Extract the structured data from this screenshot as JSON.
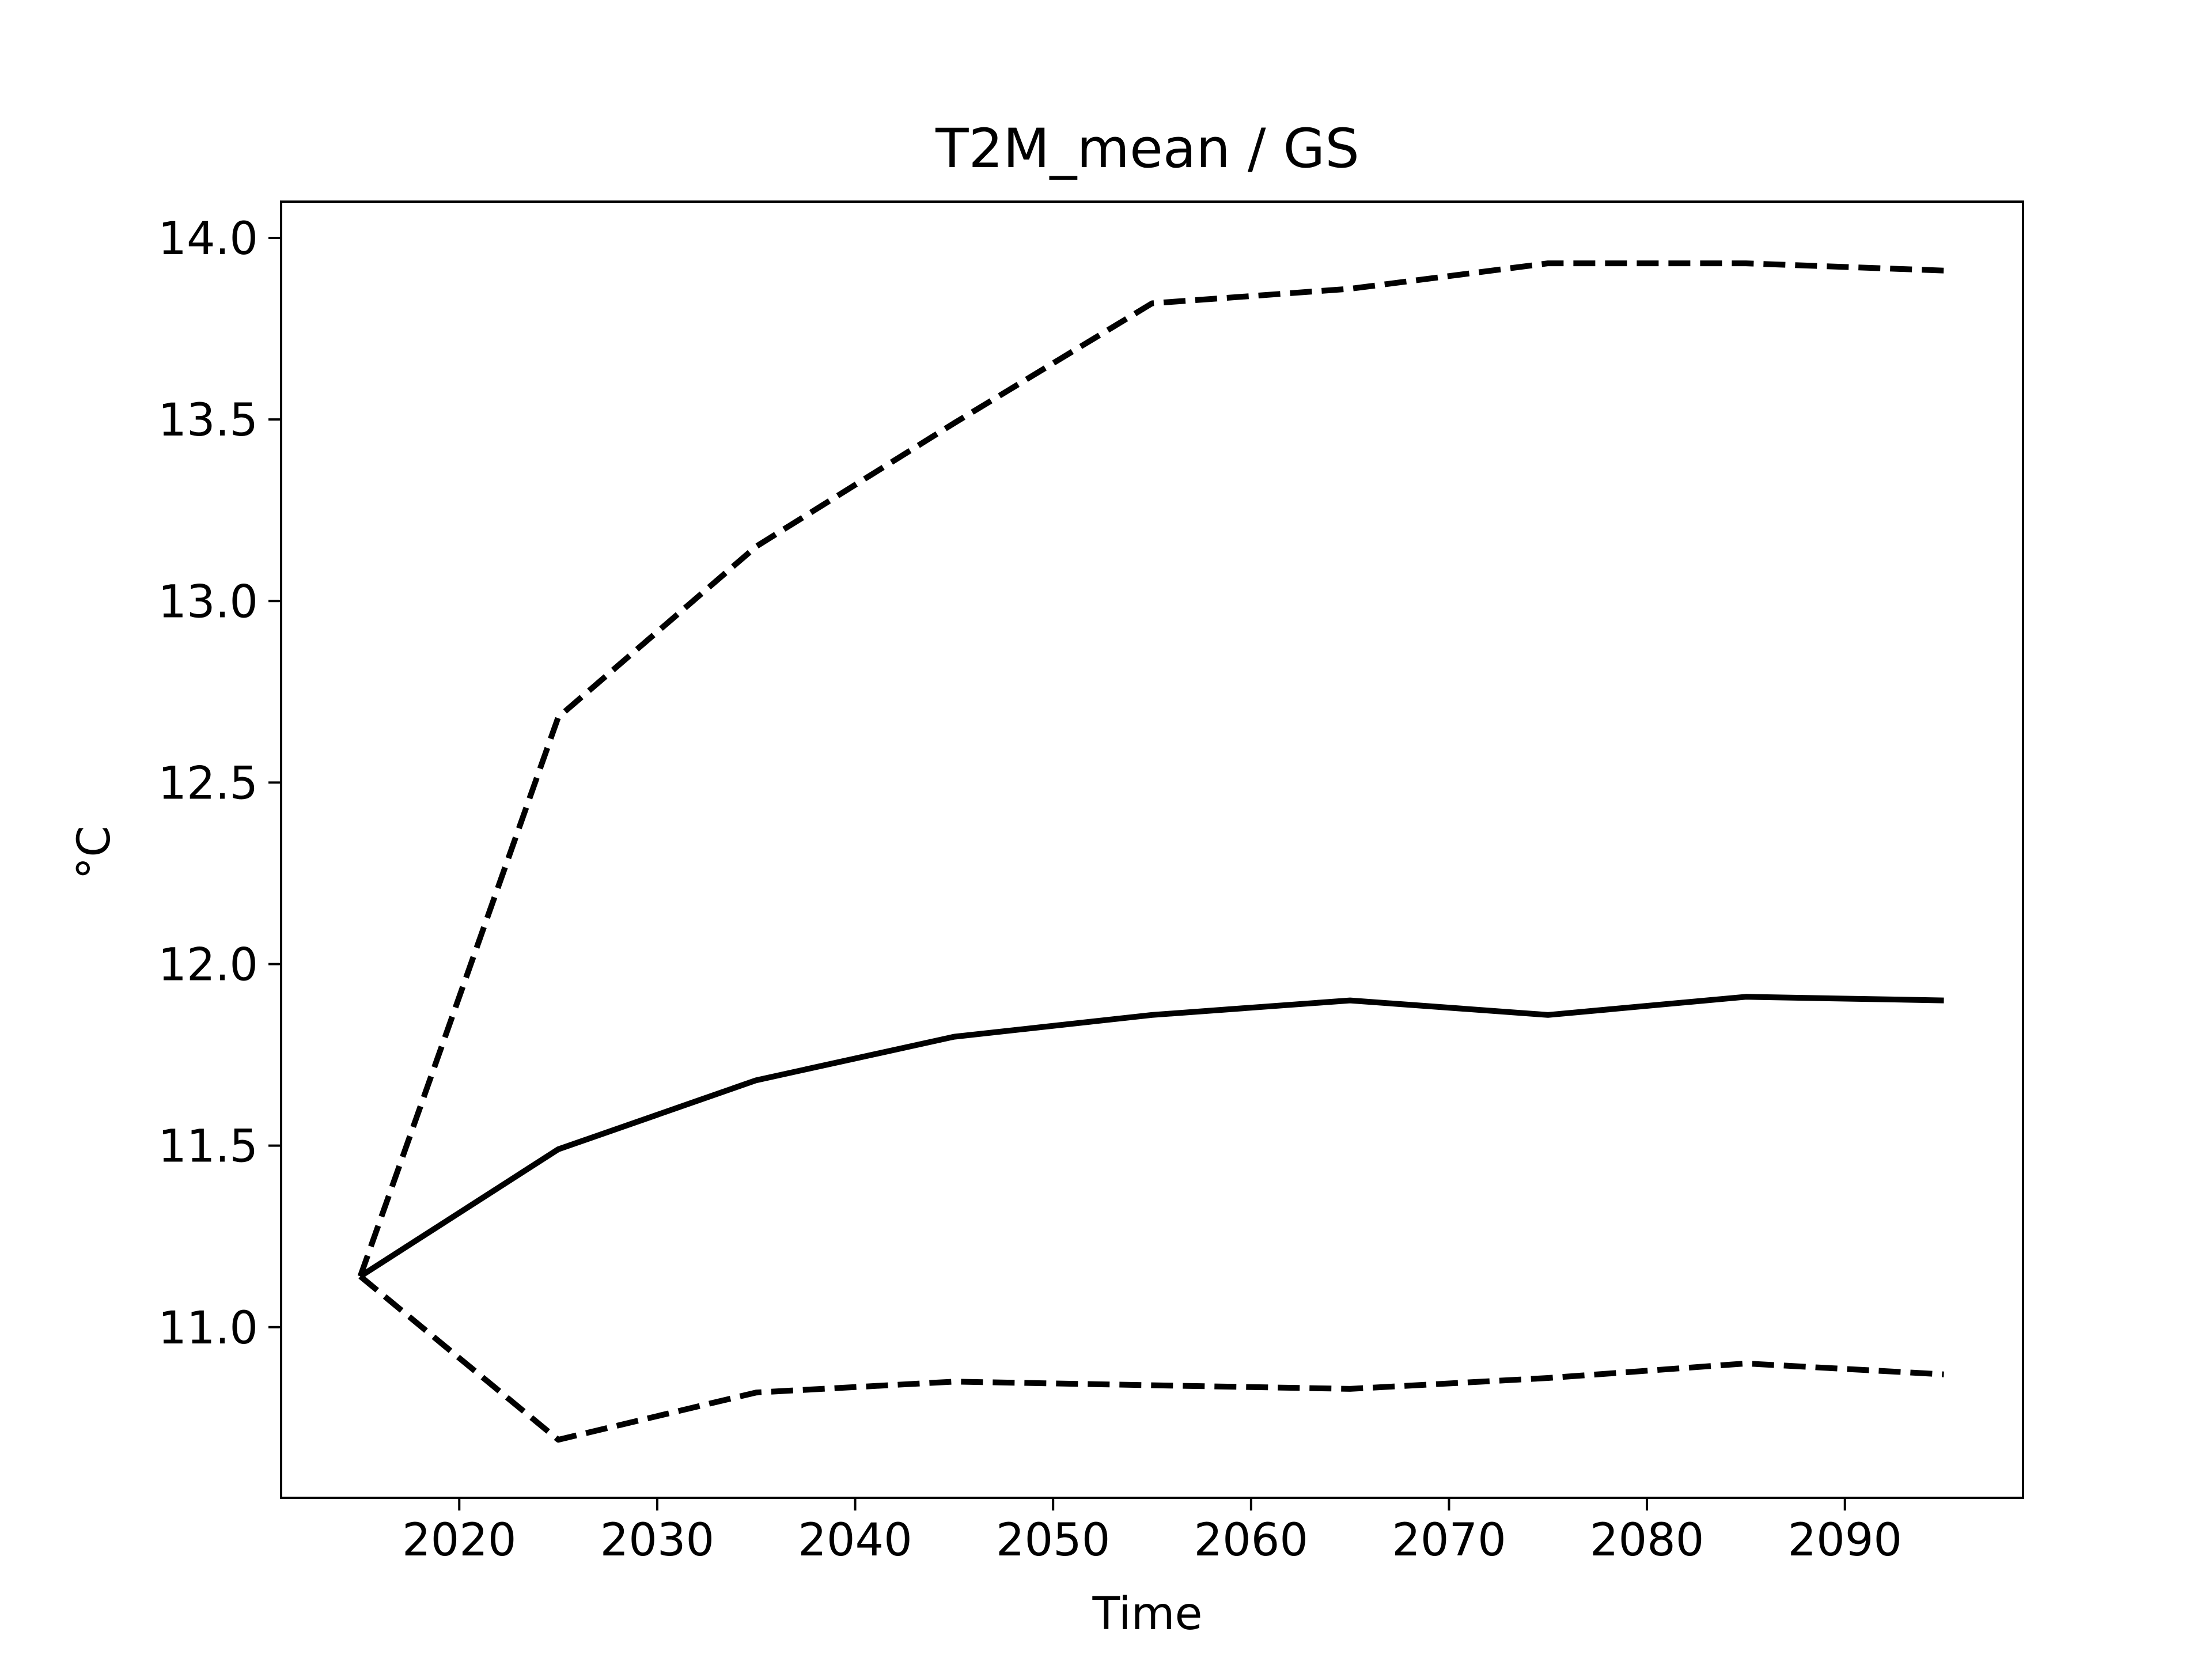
{
  "chart_data": {
    "type": "line",
    "title": "T2M_mean / GS",
    "xlabel": "Time",
    "ylabel": "°C",
    "xlim": [
      2011,
      2099
    ],
    "ylim": [
      10.53,
      14.1
    ],
    "xticks": [
      2020,
      2030,
      2040,
      2050,
      2060,
      2070,
      2080,
      2090
    ],
    "yticks": [
      11.0,
      11.5,
      12.0,
      12.5,
      13.0,
      13.5,
      14.0
    ],
    "ytick_labels": [
      "11.0",
      "11.5",
      "12.0",
      "12.5",
      "13.0",
      "13.5",
      "14.0"
    ],
    "grid": false,
    "legend": "none",
    "line_color": "#000000",
    "x": [
      2015,
      2025,
      2035,
      2045,
      2055,
      2065,
      2075,
      2085,
      2095
    ],
    "series": [
      {
        "style": "dashed",
        "values": [
          11.14,
          12.68,
          13.15,
          13.49,
          13.82,
          13.86,
          13.93,
          13.93,
          13.91
        ]
      },
      {
        "style": "solid",
        "values": [
          11.14,
          11.49,
          11.68,
          11.8,
          11.86,
          11.9,
          11.86,
          11.91,
          11.9
        ]
      },
      {
        "style": "dashed",
        "values": [
          11.14,
          10.69,
          10.82,
          10.85,
          10.84,
          10.83,
          10.86,
          10.9,
          10.87
        ]
      }
    ]
  }
}
